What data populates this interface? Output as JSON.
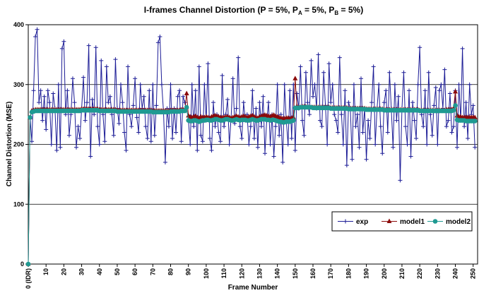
{
  "chart_data": {
    "type": "line",
    "title": [
      "I-frames Channel Distortion (P = 5%, P",
      "A",
      " = 5%, P",
      "B",
      " = 5%)"
    ],
    "x_label": "Frame Number",
    "y_label": "Channel Distortion (MSE)",
    "xlim": [
      0,
      252.5
    ],
    "ylim": [
      0,
      400
    ],
    "yticks": [
      0,
      100,
      200,
      300,
      400
    ],
    "xticks": [
      {
        "value": 0,
        "label": "0 (IDR)"
      },
      10,
      20,
      30,
      40,
      50,
      60,
      70,
      80,
      90,
      100,
      110,
      120,
      130,
      140,
      150,
      160,
      170,
      180,
      190,
      200,
      210,
      220,
      230,
      240,
      250
    ],
    "grid": true,
    "legend": "lower right",
    "x": [
      0,
      1,
      2,
      3,
      4,
      5,
      6,
      7,
      8,
      9,
      10,
      11,
      12,
      13,
      14,
      15,
      16,
      17,
      18,
      19,
      20,
      21,
      22,
      23,
      24,
      25,
      26,
      27,
      28,
      29,
      30,
      31,
      32,
      33,
      34,
      35,
      36,
      37,
      38,
      39,
      40,
      41,
      42,
      43,
      44,
      45,
      46,
      47,
      48,
      49,
      50,
      51,
      52,
      53,
      54,
      55,
      56,
      57,
      58,
      59,
      60,
      61,
      62,
      63,
      64,
      65,
      66,
      67,
      68,
      69,
      70,
      71,
      72,
      73,
      74,
      75,
      76,
      77,
      78,
      79,
      80,
      81,
      82,
      83,
      84,
      85,
      86,
      87,
      88,
      89,
      90,
      91,
      92,
      93,
      94,
      95,
      96,
      97,
      98,
      99,
      100,
      101,
      102,
      103,
      104,
      105,
      106,
      107,
      108,
      109,
      110,
      111,
      112,
      113,
      114,
      115,
      116,
      117,
      118,
      119,
      120,
      121,
      122,
      123,
      124,
      125,
      126,
      127,
      128,
      129,
      130,
      131,
      132,
      133,
      134,
      135,
      136,
      137,
      138,
      139,
      140,
      141,
      142,
      143,
      144,
      145,
      146,
      147,
      148,
      149,
      150,
      151,
      152,
      153,
      154,
      155,
      156,
      157,
      158,
      159,
      160,
      161,
      162,
      163,
      164,
      165,
      166,
      167,
      168,
      169,
      170,
      171,
      172,
      173,
      174,
      175,
      176,
      177,
      178,
      179,
      180,
      181,
      182,
      183,
      184,
      185,
      186,
      187,
      188,
      189,
      190,
      191,
      192,
      193,
      194,
      195,
      196,
      197,
      198,
      199,
      200,
      201,
      202,
      203,
      204,
      205,
      206,
      207,
      208,
      209,
      210,
      211,
      212,
      213,
      214,
      215,
      216,
      217,
      218,
      219,
      220,
      221,
      222,
      223,
      224,
      225,
      226,
      227,
      228,
      229,
      230,
      231,
      232,
      233,
      234,
      235,
      236,
      237,
      238,
      239,
      240,
      241,
      242,
      243,
      244,
      245,
      246,
      247,
      248,
      249,
      250,
      251
    ],
    "series": [
      {
        "name": "exp",
        "color": "#1c1c96",
        "marker": "plus",
        "values": [
          0,
          245,
          205,
          290,
          380,
          392,
          270,
          290,
          240,
          280,
          225,
          290,
          270,
          200,
          285,
          260,
          190,
          300,
          195,
          360,
          372,
          250,
          290,
          215,
          250,
          310,
          270,
          195,
          230,
          210,
          260,
          312,
          240,
          270,
          365,
          180,
          275,
          250,
          362,
          230,
          200,
          340,
          250,
          205,
          330,
          270,
          280,
          250,
          215,
          342,
          260,
          235,
          300,
          270,
          220,
          190,
          330,
          250,
          230,
          265,
          310,
          245,
          220,
          300,
          260,
          280,
          230,
          210,
          290,
          205,
          300,
          215,
          265,
          370,
          380,
          300,
          255,
          170,
          260,
          230,
          300,
          210,
          260,
          220,
          280,
          290,
          205,
          280,
          270,
          260,
          240,
          200,
          300,
          230,
          290,
          190,
          330,
          215,
          205,
          300,
          240,
          335,
          210,
          190,
          270,
          230,
          250,
          220,
          205,
          315,
          230,
          250,
          275,
          200,
          245,
          310,
          235,
          260,
          345,
          230,
          210,
          270,
          240,
          250,
          200,
          230,
          290,
          210,
          260,
          195,
          270,
          230,
          280,
          185,
          240,
          270,
          200,
          250,
          180,
          230,
          300,
          215,
          250,
          170,
          300,
          240,
          200,
          290,
          210,
          300,
          190,
          285,
          260,
          330,
          240,
          215,
          320,
          270,
          250,
          340,
          280,
          300,
          260,
          350,
          240,
          230,
          320,
          265,
          200,
          335,
          270,
          300,
          250,
          240,
          220,
          345,
          250,
          200,
          290,
          165,
          270,
          260,
          175,
          300,
          230,
          250,
          195,
          310,
          220,
          260,
          175,
          240,
          210,
          270,
          330,
          200,
          260,
          300,
          230,
          185,
          270,
          290,
          220,
          320,
          260,
          195,
          300,
          240,
          280,
          140,
          260,
          320,
          230,
          200,
          290,
          180,
          270,
          240,
          210,
          300,
          362,
          250,
          230,
          290,
          200,
          320,
          250,
          215,
          265,
          295,
          200,
          290,
          300,
          260,
          325,
          230,
          240,
          285,
          220,
          230,
          290,
          195,
          300,
          240,
          360,
          230,
          270,
          210,
          300,
          250,
          265,
          195
        ]
      },
      {
        "name": "model1",
        "color": "#8b0a0a",
        "marker": "triangle",
        "values": [
          0,
          245,
          256,
          257,
          258,
          258,
          258,
          258,
          258,
          258,
          258,
          258,
          258,
          258,
          258,
          258,
          258,
          258,
          258,
          258,
          258,
          258,
          258,
          258,
          258,
          258,
          258,
          258,
          258,
          258,
          259,
          259,
          259,
          259,
          259,
          259,
          259,
          259,
          259,
          259,
          258,
          258,
          258,
          258,
          258,
          258,
          258,
          258,
          258,
          258,
          257,
          257,
          257,
          257,
          257,
          257,
          257,
          257,
          257,
          257,
          257,
          257,
          257,
          257,
          257,
          257,
          257,
          257,
          257,
          257,
          256,
          256,
          256,
          256,
          256,
          256,
          256,
          256,
          256,
          256,
          257,
          257,
          257,
          257,
          257,
          257,
          258,
          258,
          258,
          285,
          248,
          246,
          245,
          246,
          247,
          245,
          244,
          246,
          245,
          245,
          246,
          245,
          244,
          246,
          247,
          248,
          247,
          246,
          245,
          245,
          245,
          246,
          246,
          245,
          244,
          245,
          246,
          247,
          246,
          245,
          246,
          247,
          246,
          245,
          246,
          247,
          248,
          246,
          245,
          244,
          246,
          247,
          248,
          249,
          248,
          247,
          246,
          248,
          249,
          247,
          246,
          245,
          244,
          243,
          243,
          244,
          244,
          243,
          244,
          245,
          310,
          263,
          262,
          262,
          263,
          263,
          263,
          262,
          262,
          262,
          262,
          262,
          262,
          262,
          262,
          262,
          262,
          262,
          262,
          262,
          261,
          261,
          261,
          261,
          261,
          261,
          261,
          261,
          261,
          261,
          260,
          260,
          260,
          260,
          260,
          260,
          260,
          260,
          260,
          260,
          259,
          259,
          259,
          259,
          259,
          259,
          259,
          259,
          259,
          259,
          258,
          258,
          258,
          258,
          258,
          258,
          258,
          258,
          258,
          258,
          258,
          258,
          258,
          258,
          258,
          258,
          258,
          258,
          258,
          258,
          257,
          257,
          257,
          257,
          257,
          257,
          257,
          257,
          257,
          257,
          257,
          257,
          257,
          257,
          257,
          258,
          258,
          258,
          258,
          260,
          288,
          248,
          246,
          246,
          245,
          245,
          245,
          245,
          245,
          245,
          245,
          245
        ]
      },
      {
        "name": "model2",
        "color": "#1f9a92",
        "marker": "circle",
        "values": [
          0,
          245,
          254,
          255,
          256,
          256,
          256,
          256,
          256,
          256,
          256,
          256,
          256,
          256,
          256,
          256,
          256,
          256,
          256,
          256,
          256,
          256,
          256,
          256,
          256,
          256,
          256,
          256,
          256,
          256,
          257,
          257,
          257,
          257,
          257,
          257,
          257,
          257,
          257,
          257,
          256,
          256,
          256,
          256,
          256,
          256,
          256,
          256,
          256,
          256,
          255,
          255,
          255,
          255,
          255,
          255,
          255,
          255,
          255,
          255,
          255,
          255,
          255,
          255,
          255,
          255,
          255,
          255,
          255,
          255,
          254,
          254,
          254,
          254,
          254,
          254,
          254,
          254,
          254,
          254,
          255,
          255,
          255,
          255,
          255,
          255,
          256,
          256,
          256,
          262,
          240,
          239,
          239,
          240,
          240,
          239,
          238,
          239,
          240,
          240,
          241,
          241,
          240,
          240,
          241,
          242,
          242,
          241,
          240,
          240,
          241,
          242,
          242,
          241,
          240,
          240,
          241,
          242,
          241,
          240,
          241,
          241,
          241,
          240,
          240,
          241,
          242,
          241,
          240,
          240,
          241,
          242,
          242,
          242,
          241,
          241,
          240,
          241,
          241,
          240,
          239,
          238,
          238,
          237,
          237,
          238,
          238,
          238,
          239,
          240,
          261,
          261,
          261,
          262,
          262,
          262,
          262,
          262,
          262,
          262,
          261,
          261,
          261,
          261,
          261,
          261,
          261,
          261,
          261,
          261,
          260,
          260,
          260,
          260,
          260,
          260,
          260,
          260,
          260,
          260,
          259,
          259,
          259,
          259,
          259,
          259,
          259,
          259,
          259,
          259,
          258,
          258,
          258,
          258,
          258,
          258,
          258,
          258,
          258,
          258,
          257,
          257,
          257,
          257,
          257,
          257,
          257,
          257,
          257,
          257,
          257,
          257,
          257,
          257,
          257,
          257,
          257,
          257,
          257,
          257,
          256,
          256,
          256,
          256,
          256,
          256,
          256,
          256,
          256,
          256,
          256,
          256,
          256,
          256,
          256,
          256,
          256,
          256,
          256,
          257,
          265,
          241,
          240,
          240,
          240,
          240,
          239,
          239,
          239,
          239,
          239,
          239
        ]
      }
    ]
  }
}
